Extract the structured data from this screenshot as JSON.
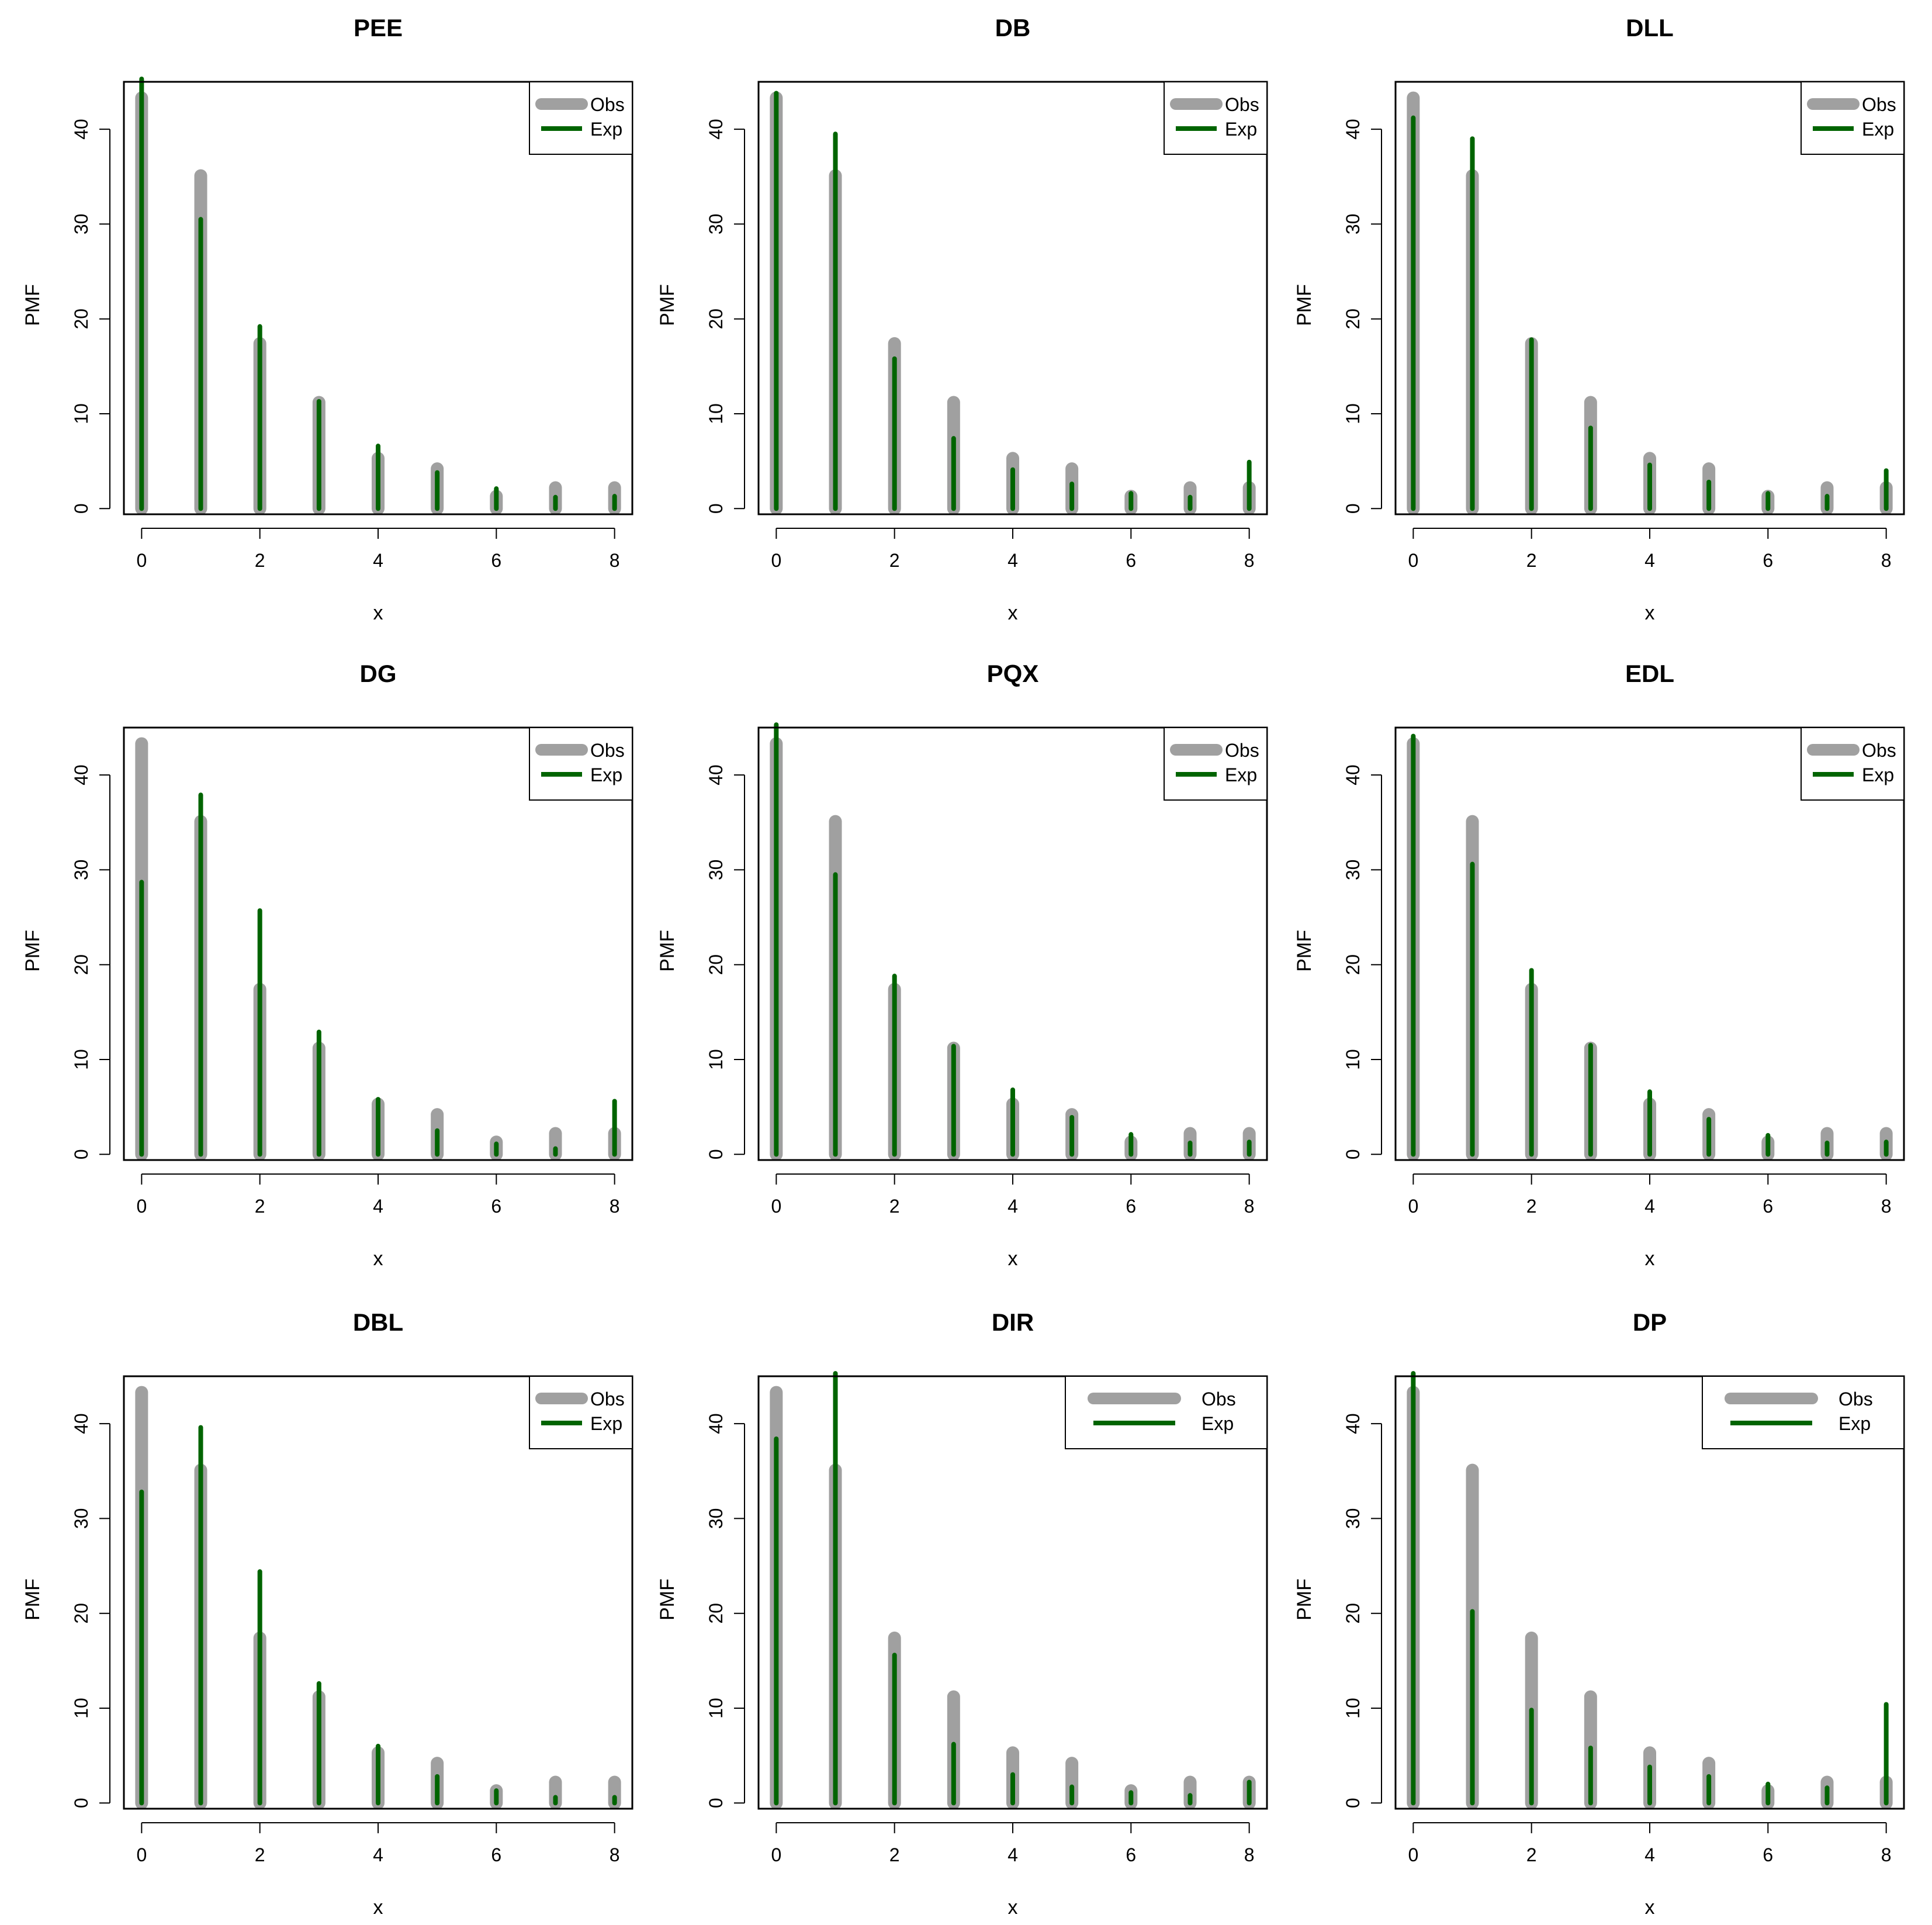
{
  "colors": {
    "obs": "#a0a0a0",
    "exp": "#006400",
    "axis": "#000000",
    "background": "#ffffff"
  },
  "chart_data": [
    {
      "type": "bar",
      "title": "PEE",
      "xlabel": "x",
      "ylabel": "PMF",
      "x": [
        0,
        1,
        2,
        3,
        4,
        5,
        6,
        7,
        8
      ],
      "xticks": [
        0,
        2,
        4,
        6,
        8
      ],
      "yticks": [
        0,
        10,
        20,
        30,
        40
      ],
      "xlim": [
        -0.3,
        8.3
      ],
      "ylim": [
        -0.6,
        45
      ],
      "series": [
        {
          "name": "Obs",
          "values": [
            43.3,
            35.1,
            17.4,
            11.2,
            5.3,
            4.2,
            1.3,
            2.2,
            2.2
          ]
        },
        {
          "name": "Exp",
          "values": [
            45.3,
            30.5,
            19.2,
            11.3,
            6.6,
            3.8,
            2.1,
            1.2,
            1.3
          ]
        }
      ],
      "legend": {
        "position": "top-right",
        "entries": [
          "Obs",
          "Exp"
        ]
      }
    },
    {
      "type": "bar",
      "title": "DB",
      "xlabel": "x",
      "ylabel": "PMF",
      "x": [
        0,
        1,
        2,
        3,
        4,
        5,
        6,
        7,
        8
      ],
      "xticks": [
        0,
        2,
        4,
        6,
        8
      ],
      "yticks": [
        0,
        10,
        20,
        30,
        40
      ],
      "xlim": [
        -0.3,
        8.3
      ],
      "ylim": [
        -0.6,
        45
      ],
      "series": [
        {
          "name": "Obs",
          "values": [
            43.3,
            35.1,
            17.4,
            11.2,
            5.3,
            4.2,
            1.3,
            2.2,
            2.2
          ]
        },
        {
          "name": "Exp",
          "values": [
            43.8,
            39.5,
            15.8,
            7.4,
            4.1,
            2.6,
            1.6,
            1.2,
            4.9
          ]
        }
      ],
      "legend": {
        "position": "top-right",
        "entries": [
          "Obs",
          "Exp"
        ]
      }
    },
    {
      "type": "bar",
      "title": "DLL",
      "xlabel": "x",
      "ylabel": "PMF",
      "x": [
        0,
        1,
        2,
        3,
        4,
        5,
        6,
        7,
        8
      ],
      "xticks": [
        0,
        2,
        4,
        6,
        8
      ],
      "yticks": [
        0,
        10,
        20,
        30,
        40
      ],
      "xlim": [
        -0.3,
        8.3
      ],
      "ylim": [
        -0.6,
        45
      ],
      "series": [
        {
          "name": "Obs",
          "values": [
            43.3,
            35.1,
            17.4,
            11.2,
            5.3,
            4.2,
            1.3,
            2.2,
            2.2
          ]
        },
        {
          "name": "Exp",
          "values": [
            41.2,
            39.0,
            17.8,
            8.5,
            4.6,
            2.8,
            1.6,
            1.3,
            4.0
          ]
        }
      ],
      "legend": {
        "position": "top-right",
        "entries": [
          "Obs",
          "Exp"
        ]
      }
    },
    {
      "type": "bar",
      "title": "DG",
      "xlabel": "x",
      "ylabel": "PMF",
      "x": [
        0,
        1,
        2,
        3,
        4,
        5,
        6,
        7,
        8
      ],
      "xticks": [
        0,
        2,
        4,
        6,
        8
      ],
      "yticks": [
        0,
        10,
        20,
        30,
        40
      ],
      "xlim": [
        -0.3,
        8.3
      ],
      "ylim": [
        -0.6,
        45
      ],
      "series": [
        {
          "name": "Obs",
          "values": [
            43.3,
            35.1,
            17.4,
            11.2,
            5.3,
            4.2,
            1.3,
            2.2,
            2.2
          ]
        },
        {
          "name": "Exp",
          "values": [
            28.7,
            37.9,
            25.7,
            12.9,
            5.8,
            2.5,
            1.1,
            0.6,
            5.6
          ]
        }
      ],
      "legend": {
        "position": "top-right",
        "entries": [
          "Obs",
          "Exp"
        ]
      }
    },
    {
      "type": "bar",
      "title": "PQX",
      "xlabel": "x",
      "ylabel": "PMF",
      "x": [
        0,
        1,
        2,
        3,
        4,
        5,
        6,
        7,
        8
      ],
      "xticks": [
        0,
        2,
        4,
        6,
        8
      ],
      "yticks": [
        0,
        10,
        20,
        30,
        40
      ],
      "xlim": [
        -0.3,
        8.3
      ],
      "ylim": [
        -0.6,
        45
      ],
      "series": [
        {
          "name": "Obs",
          "values": [
            43.3,
            35.1,
            17.4,
            11.2,
            5.3,
            4.2,
            1.3,
            2.2,
            2.2
          ]
        },
        {
          "name": "Exp",
          "values": [
            45.3,
            29.5,
            18.8,
            11.4,
            6.8,
            3.9,
            2.1,
            1.2,
            1.3
          ]
        }
      ],
      "legend": {
        "position": "top-right",
        "entries": [
          "Obs",
          "Exp"
        ]
      }
    },
    {
      "type": "bar",
      "title": "EDL",
      "xlabel": "x",
      "ylabel": "PMF",
      "x": [
        0,
        1,
        2,
        3,
        4,
        5,
        6,
        7,
        8
      ],
      "xticks": [
        0,
        2,
        4,
        6,
        8
      ],
      "yticks": [
        0,
        10,
        20,
        30,
        40
      ],
      "xlim": [
        -0.3,
        8.3
      ],
      "ylim": [
        -0.6,
        45
      ],
      "series": [
        {
          "name": "Obs",
          "values": [
            43.3,
            35.1,
            17.4,
            11.2,
            5.3,
            4.2,
            1.3,
            2.2,
            2.2
          ]
        },
        {
          "name": "Exp",
          "values": [
            44.1,
            30.6,
            19.4,
            11.5,
            6.6,
            3.7,
            2.0,
            1.2,
            1.3
          ]
        }
      ],
      "legend": {
        "position": "top-right",
        "entries": [
          "Obs",
          "Exp"
        ]
      }
    },
    {
      "type": "bar",
      "title": "DBL",
      "xlabel": "x",
      "ylabel": "PMF",
      "x": [
        0,
        1,
        2,
        3,
        4,
        5,
        6,
        7,
        8
      ],
      "xticks": [
        0,
        2,
        4,
        6,
        8
      ],
      "yticks": [
        0,
        10,
        20,
        30,
        40
      ],
      "xlim": [
        -0.3,
        8.3
      ],
      "ylim": [
        -0.6,
        45
      ],
      "series": [
        {
          "name": "Obs",
          "values": [
            43.3,
            35.1,
            17.4,
            11.2,
            5.3,
            4.2,
            1.3,
            2.2,
            2.2
          ]
        },
        {
          "name": "Exp",
          "values": [
            32.8,
            39.6,
            24.4,
            12.6,
            6.0,
            2.8,
            1.3,
            0.6,
            0.6
          ]
        }
      ],
      "legend": {
        "position": "top-right",
        "entries": [
          "Obs",
          "Exp"
        ]
      }
    },
    {
      "type": "bar",
      "title": "DIR",
      "xlabel": "x",
      "ylabel": "PMF",
      "x": [
        0,
        1,
        2,
        3,
        4,
        5,
        6,
        7,
        8
      ],
      "xticks": [
        0,
        2,
        4,
        6,
        8
      ],
      "yticks": [
        0,
        10,
        20,
        30,
        40
      ],
      "xlim": [
        -0.3,
        8.3
      ],
      "ylim": [
        -0.6,
        45
      ],
      "series": [
        {
          "name": "Obs",
          "values": [
            43.3,
            35.1,
            17.4,
            11.2,
            5.3,
            4.2,
            1.3,
            2.2,
            2.2
          ]
        },
        {
          "name": "Exp",
          "values": [
            38.4,
            45.3,
            15.6,
            6.2,
            3.0,
            1.7,
            1.1,
            0.8,
            2.2
          ]
        }
      ],
      "legend": {
        "position": "top-right",
        "entries": [
          "Obs",
          "Exp"
        ]
      }
    },
    {
      "type": "bar",
      "title": "DP",
      "xlabel": "x",
      "ylabel": "PMF",
      "x": [
        0,
        1,
        2,
        3,
        4,
        5,
        6,
        7,
        8
      ],
      "xticks": [
        0,
        2,
        4,
        6,
        8
      ],
      "yticks": [
        0,
        10,
        20,
        30,
        40
      ],
      "xlim": [
        -0.3,
        8.3
      ],
      "ylim": [
        -0.6,
        45
      ],
      "series": [
        {
          "name": "Obs",
          "values": [
            43.3,
            35.1,
            17.4,
            11.2,
            5.3,
            4.2,
            1.3,
            2.2,
            2.2
          ]
        },
        {
          "name": "Exp",
          "values": [
            45.3,
            20.2,
            9.8,
            5.8,
            3.8,
            2.8,
            2.0,
            1.6,
            10.4
          ]
        }
      ],
      "legend": {
        "position": "top-right",
        "entries": [
          "Obs",
          "Exp"
        ]
      }
    }
  ]
}
